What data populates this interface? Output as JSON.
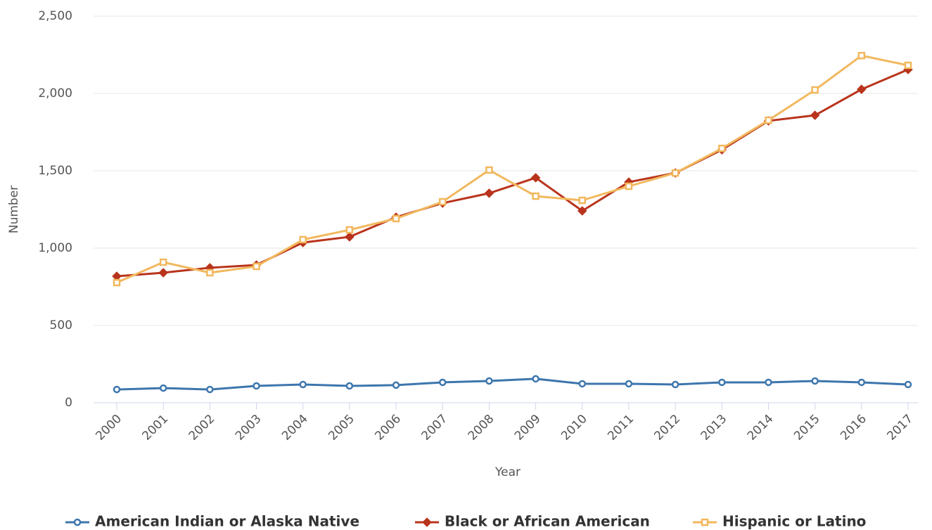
{
  "chart_data": {
    "type": "line",
    "x_label": "Year",
    "y_label": "Number",
    "categories": [
      "2000",
      "2001",
      "2002",
      "2003",
      "2004",
      "2005",
      "2006",
      "2007",
      "2008",
      "2009",
      "2010",
      "2011",
      "2012",
      "2013",
      "2014",
      "2015",
      "2016",
      "2017"
    ],
    "series": [
      {
        "name": "American Indian or Alaska Native",
        "color": "#3d76ad",
        "marker": "circle",
        "values": [
          86,
          95,
          86,
          109,
          118,
          109,
          114,
          132,
          141,
          155,
          123,
          123,
          118,
          132,
          132,
          141,
          132,
          118
        ]
      },
      {
        "name": "Black or African American",
        "color": "#b9341c",
        "marker": "diamond",
        "values": [
          818,
          841,
          873,
          891,
          1036,
          1073,
          1200,
          1291,
          1355,
          1455,
          1241,
          1427,
          1486,
          1636,
          1823,
          1859,
          2027,
          2155
        ]
      },
      {
        "name": "Hispanic or Latino",
        "color": "#f2b85e",
        "marker": "square",
        "values": [
          777,
          909,
          841,
          882,
          1055,
          1118,
          1191,
          1300,
          1505,
          1336,
          1309,
          1400,
          1486,
          1645,
          1827,
          2023,
          2245,
          2182
        ]
      }
    ],
    "ylim": [
      0,
      2500
    ],
    "yticks": [
      0,
      500,
      {
        "value": 1000,
        "label": "1,000"
      },
      {
        "value": 1500,
        "label": "1,500"
      },
      {
        "value": 2000,
        "label": "2,000"
      },
      {
        "value": 2500,
        "label": "2,500"
      }
    ],
    "grid": true,
    "legend": "bottom"
  }
}
